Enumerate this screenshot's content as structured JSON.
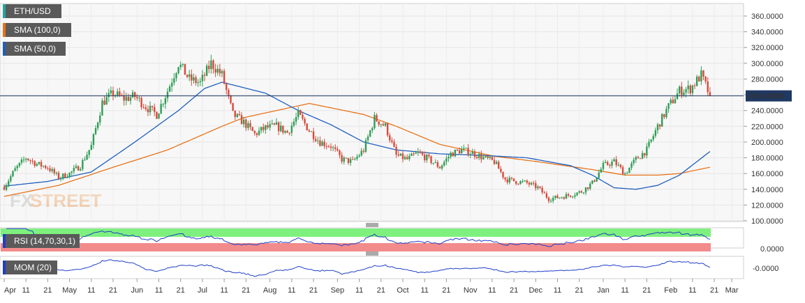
{
  "chart_data": {
    "type": "candlestick",
    "title": "ETH/USD",
    "legend": [
      {
        "label": "ETH/USD",
        "color": "#26a69a"
      },
      {
        "label": "SMA (100,0)",
        "color": "#e8731a"
      },
      {
        "label": "SMA (50,0)",
        "color": "#1e5fbf"
      }
    ],
    "last_price": "258.60086",
    "last_value": 258.60086,
    "y_ticks": [
      "100.0000",
      "120.0000",
      "140.0000",
      "160.0000",
      "180.0000",
      "200.0000",
      "220.0000",
      "240.0000",
      "260.0000",
      "280.0000",
      "300.0000",
      "320.0000",
      "340.0000",
      "360.0000"
    ],
    "y_tick_values": [
      100,
      120,
      140,
      160,
      180,
      200,
      220,
      240,
      260,
      280,
      300,
      320,
      340,
      360
    ],
    "ylim": [
      100,
      365
    ],
    "x_tick_labels": [
      "Apr",
      "11",
      "21",
      "May",
      "11",
      "21",
      "Jun",
      "11",
      "21",
      "Jul",
      "11",
      "21",
      "Aug",
      "11",
      "21",
      "Sep",
      "11",
      "21",
      "Oct",
      "11",
      "21",
      "Nov",
      "11",
      "21",
      "Dec",
      "11",
      "21",
      "Jan",
      "11",
      "21",
      "Feb",
      "11",
      "21",
      "Mar"
    ],
    "x_tick_days": [
      0,
      10,
      20,
      30,
      40,
      50,
      61,
      71,
      81,
      91,
      101,
      111,
      122,
      132,
      142,
      153,
      163,
      173,
      183,
      193,
      203,
      214,
      224,
      234,
      244,
      254,
      264,
      275,
      285,
      295,
      306,
      316,
      326,
      334
    ],
    "close_anchor_days": [
      0,
      5,
      10,
      15,
      20,
      25,
      30,
      35,
      40,
      45,
      50,
      55,
      60,
      65,
      70,
      75,
      80,
      85,
      90,
      95,
      100,
      105,
      110,
      115,
      120,
      125,
      130,
      135,
      140,
      145,
      150,
      155,
      160,
      165,
      170,
      175,
      180,
      185,
      190,
      195,
      200,
      205,
      210,
      215,
      220,
      225,
      230,
      235,
      240,
      245,
      250,
      255,
      260,
      265,
      270,
      275,
      280,
      285,
      290,
      295,
      300,
      305,
      310,
      315,
      320,
      324
    ],
    "close_anchor_values": [
      143,
      165,
      180,
      172,
      168,
      155,
      160,
      170,
      195,
      250,
      262,
      255,
      258,
      245,
      235,
      265,
      300,
      280,
      275,
      300,
      285,
      235,
      225,
      210,
      218,
      220,
      212,
      235,
      215,
      200,
      195,
      178,
      175,
      190,
      230,
      220,
      183,
      178,
      186,
      178,
      168,
      185,
      190,
      186,
      180,
      175,
      153,
      150,
      148,
      142,
      128,
      130,
      133,
      137,
      148,
      170,
      175,
      160,
      178,
      190,
      220,
      245,
      265,
      268,
      285,
      258.6
    ],
    "sma100_anchor_days": [
      0,
      25,
      50,
      75,
      100,
      110,
      125,
      140,
      165,
      180,
      200,
      225,
      245,
      270,
      285,
      300,
      310,
      324
    ],
    "sma100_anchor_values": [
      131,
      145,
      168,
      190,
      220,
      231,
      240,
      249,
      235,
      220,
      197,
      182,
      175,
      165,
      158,
      158,
      160,
      168
    ],
    "sma50_anchor_days": [
      0,
      20,
      40,
      60,
      80,
      92,
      100,
      120,
      135,
      150,
      165,
      180,
      200,
      220,
      240,
      260,
      270,
      280,
      290,
      300,
      310,
      324
    ],
    "sma50_anchor_values": [
      144,
      150,
      162,
      200,
      240,
      268,
      276,
      262,
      240,
      222,
      200,
      190,
      185,
      183,
      180,
      170,
      158,
      142,
      140,
      145,
      158,
      188
    ],
    "rsi_label": "RSI (14,70,30,1)",
    "rsi_tick": "0.0000",
    "mom_label": "MOM (20)",
    "mom_tick": "-0.0000",
    "watermark": "FXSTREET"
  }
}
